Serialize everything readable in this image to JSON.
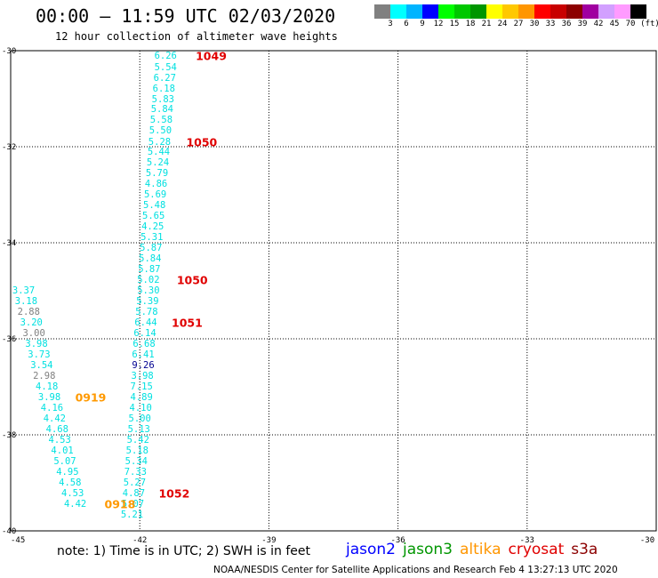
{
  "header": {
    "title": "00:00 – 11:59 UTC 02/03/2020",
    "subtitle": "12 hour collection of altimeter wave heights"
  },
  "colorbar": {
    "colors": [
      "#808080",
      "#00ffff",
      "#00b4ff",
      "#0000ff",
      "#00ff00",
      "#00c800",
      "#009600",
      "#ffff00",
      "#ffc800",
      "#ff9600",
      "#ff0000",
      "#c80000",
      "#8c0000",
      "#a000a0",
      "#d2a0ff",
      "#ff9bff",
      "#000000"
    ],
    "labels": [
      "3",
      "6",
      "9",
      "12",
      "15",
      "18",
      "21",
      "24",
      "27",
      "30",
      "33",
      "36",
      "39",
      "42",
      "45",
      "70",
      "(ft)"
    ]
  },
  "chart_data": {
    "type": "scatter",
    "xlim": [
      -45,
      -30
    ],
    "ylim": [
      -40,
      -30
    ],
    "x_ticks": [
      "-45",
      "-42",
      "-39",
      "-36",
      "-33",
      "-30"
    ],
    "y_ticks": [
      "-30",
      "-32",
      "-34",
      "-36",
      "-38",
      "-40"
    ],
    "grid": true,
    "tracks": [
      {
        "name": "cyan-east",
        "points": [
          {
            "lon": -41.4,
            "lat": -30.12,
            "label": "6.26",
            "color": "#00e0e0"
          },
          {
            "lon": -41.4,
            "lat": -30.35,
            "label": "5.54",
            "color": "#00e0e0"
          },
          {
            "lon": -41.42,
            "lat": -30.57,
            "label": "6.27",
            "color": "#00e0e0"
          },
          {
            "lon": -41.44,
            "lat": -30.79,
            "label": "6.18",
            "color": "#00e0e0"
          },
          {
            "lon": -41.46,
            "lat": -31.01,
            "label": "5.83",
            "color": "#00e0e0"
          },
          {
            "lon": -41.48,
            "lat": -31.23,
            "label": "5.84",
            "color": "#00e0e0"
          },
          {
            "lon": -41.5,
            "lat": -31.45,
            "label": "5.58",
            "color": "#00e0e0"
          },
          {
            "lon": -41.52,
            "lat": -31.67,
            "label": "5.50",
            "color": "#00e0e0"
          },
          {
            "lon": -41.54,
            "lat": -31.9,
            "label": "5.28",
            "color": "#00e0e0"
          },
          {
            "lon": -41.56,
            "lat": -32.12,
            "label": "5.44",
            "color": "#00e0e0"
          },
          {
            "lon": -41.58,
            "lat": -32.34,
            "label": "5.24",
            "color": "#00e0e0"
          },
          {
            "lon": -41.6,
            "lat": -32.56,
            "label": "5.79",
            "color": "#00e0e0"
          },
          {
            "lon": -41.62,
            "lat": -32.78,
            "label": "4.86",
            "color": "#00e0e0"
          },
          {
            "lon": -41.64,
            "lat": -33.0,
            "label": "5.69",
            "color": "#00e0e0"
          },
          {
            "lon": -41.66,
            "lat": -33.22,
            "label": "5.48",
            "color": "#00e0e0"
          },
          {
            "lon": -41.68,
            "lat": -33.45,
            "label": "5.65",
            "color": "#00e0e0"
          },
          {
            "lon": -41.7,
            "lat": -33.67,
            "label": "4.25",
            "color": "#00e0e0"
          },
          {
            "lon": -41.72,
            "lat": -33.89,
            "label": "5.31",
            "color": "#00e0e0"
          },
          {
            "lon": -41.74,
            "lat": -34.11,
            "label": "5.87",
            "color": "#00e0e0"
          },
          {
            "lon": -41.76,
            "lat": -34.33,
            "label": "5.84",
            "color": "#00e0e0"
          },
          {
            "lon": -41.78,
            "lat": -34.56,
            "label": "5.87",
            "color": "#00e0e0"
          },
          {
            "lon": -41.8,
            "lat": -34.78,
            "label": "5.02",
            "color": "#00e0e0"
          },
          {
            "lon": -41.8,
            "lat": -35.0,
            "label": "5.30",
            "color": "#00e0e0"
          },
          {
            "lon": -41.82,
            "lat": -35.22,
            "label": "5.39",
            "color": "#00e0e0"
          },
          {
            "lon": -41.84,
            "lat": -35.44,
            "label": "5.78",
            "color": "#00e0e0"
          },
          {
            "lon": -41.86,
            "lat": -35.66,
            "label": "6.44",
            "color": "#00e0e0"
          },
          {
            "lon": -41.88,
            "lat": -35.88,
            "label": "6.14",
            "color": "#00e0e0"
          },
          {
            "lon": -41.9,
            "lat": -36.11,
            "label": "6.68",
            "color": "#00e0e0"
          },
          {
            "lon": -41.92,
            "lat": -36.33,
            "label": "6.41",
            "color": "#00e0e0"
          },
          {
            "lon": -41.92,
            "lat": -36.55,
            "label": "9.26",
            "color": "#000090"
          },
          {
            "lon": -41.94,
            "lat": -36.77,
            "label": "3.98",
            "color": "#00e0e0"
          },
          {
            "lon": -41.96,
            "lat": -37.0,
            "label": "7.15",
            "color": "#00e0e0"
          },
          {
            "lon": -41.96,
            "lat": -37.22,
            "label": "4.89",
            "color": "#00e0e0"
          },
          {
            "lon": -41.98,
            "lat": -37.44,
            "label": "4.10",
            "color": "#00e0e0"
          },
          {
            "lon": -42.0,
            "lat": -37.66,
            "label": "5.00",
            "color": "#00e0e0"
          },
          {
            "lon": -42.02,
            "lat": -37.88,
            "label": "5.13",
            "color": "#00e0e0"
          },
          {
            "lon": -42.04,
            "lat": -38.11,
            "label": "5.42",
            "color": "#00e0e0"
          },
          {
            "lon": -42.06,
            "lat": -38.33,
            "label": "5.18",
            "color": "#00e0e0"
          },
          {
            "lon": -42.08,
            "lat": -38.55,
            "label": "5.34",
            "color": "#00e0e0"
          },
          {
            "lon": -42.1,
            "lat": -38.77,
            "label": "7.33",
            "color": "#00e0e0"
          },
          {
            "lon": -42.12,
            "lat": -39.0,
            "label": "5.27",
            "color": "#00e0e0"
          },
          {
            "lon": -42.14,
            "lat": -39.22,
            "label": "4.87",
            "color": "#00e0e0"
          },
          {
            "lon": -42.16,
            "lat": -39.44,
            "label": "5.07",
            "color": "#00e0e0"
          },
          {
            "lon": -42.18,
            "lat": -39.66,
            "label": "5.21",
            "color": "#00e0e0"
          }
        ]
      },
      {
        "name": "cyan-west",
        "points": [
          {
            "lon": -44.7,
            "lat": -35.0,
            "label": "3.37",
            "color": "#00e0e0"
          },
          {
            "lon": -44.64,
            "lat": -35.22,
            "label": "3.18",
            "color": "#00e0e0"
          },
          {
            "lon": -44.58,
            "lat": -35.44,
            "label": "2.88",
            "color": "#808080"
          },
          {
            "lon": -44.52,
            "lat": -35.66,
            "label": "3.20",
            "color": "#00e0e0"
          },
          {
            "lon": -44.46,
            "lat": -35.88,
            "label": "3.00",
            "color": "#808080"
          },
          {
            "lon": -44.4,
            "lat": -36.11,
            "label": "3.98",
            "color": "#00e0e0"
          },
          {
            "lon": -44.34,
            "lat": -36.33,
            "label": "3.73",
            "color": "#00e0e0"
          },
          {
            "lon": -44.28,
            "lat": -36.55,
            "label": "3.54",
            "color": "#00e0e0"
          },
          {
            "lon": -44.22,
            "lat": -36.77,
            "label": "2.98",
            "color": "#808080"
          },
          {
            "lon": -44.16,
            "lat": -37.0,
            "label": "4.18",
            "color": "#00e0e0"
          },
          {
            "lon": -44.1,
            "lat": -37.22,
            "label": "3.98",
            "color": "#00e0e0"
          },
          {
            "lon": -44.04,
            "lat": -37.44,
            "label": "4.16",
            "color": "#00e0e0"
          },
          {
            "lon": -43.98,
            "lat": -37.66,
            "label": "4.42",
            "color": "#00e0e0"
          },
          {
            "lon": -43.92,
            "lat": -37.88,
            "label": "4.68",
            "color": "#00e0e0"
          },
          {
            "lon": -43.86,
            "lat": -38.11,
            "label": "4.53",
            "color": "#00e0e0"
          },
          {
            "lon": -43.8,
            "lat": -38.33,
            "label": "4.01",
            "color": "#00e0e0"
          },
          {
            "lon": -43.74,
            "lat": -38.55,
            "label": "5.07",
            "color": "#00e0e0"
          },
          {
            "lon": -43.68,
            "lat": -38.77,
            "label": "4.95",
            "color": "#00e0e0"
          },
          {
            "lon": -43.62,
            "lat": -39.0,
            "label": "4.58",
            "color": "#00e0e0"
          },
          {
            "lon": -43.56,
            "lat": -39.22,
            "label": "4.53",
            "color": "#00e0e0"
          },
          {
            "lon": -43.5,
            "lat": -39.44,
            "label": "4.42",
            "color": "#00e0e0"
          }
        ]
      }
    ],
    "time_labels": [
      {
        "lon": -40.7,
        "lat": -30.12,
        "text": "1049",
        "color": "#e00000"
      },
      {
        "lon": -40.92,
        "lat": -31.9,
        "text": "1050",
        "color": "#e00000"
      },
      {
        "lon": -41.14,
        "lat": -34.78,
        "text": "1050",
        "color": "#e00000"
      },
      {
        "lon": -41.26,
        "lat": -35.66,
        "text": "1051",
        "color": "#e00000"
      },
      {
        "lon": -43.5,
        "lat": -37.22,
        "text": "0919",
        "color": "#ff9900"
      },
      {
        "lon": -41.56,
        "lat": -39.22,
        "text": "1052",
        "color": "#e00000"
      },
      {
        "lon": -42.82,
        "lat": -39.44,
        "text": "0918",
        "color": "#ff9900"
      }
    ]
  },
  "footer": {
    "note": "note: 1) Time is in UTC; 2) SWH is in feet",
    "legend": [
      {
        "name": "jason2",
        "color": "#0000ff"
      },
      {
        "name": "jason3",
        "color": "#009600"
      },
      {
        "name": "altika",
        "color": "#ff9600"
      },
      {
        "name": "cryosat",
        "color": "#e00000"
      },
      {
        "name": "s3a",
        "color": "#8c0000"
      }
    ],
    "credit": "NOAA/NESDIS Center for Satellite Applications and Research    Feb  4 13:27:13 UTC 2020"
  }
}
